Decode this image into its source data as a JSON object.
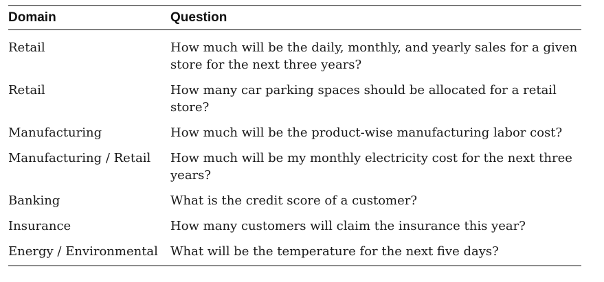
{
  "table": {
    "headers": [
      "Domain",
      "Question"
    ],
    "rows": [
      {
        "domain": "Retail",
        "question": "How much will be the daily, monthly, and yearly sales for a given store for the next three years?"
      },
      {
        "domain": "Retail",
        "question": "How many car parking spaces should be allocated for a retail store?"
      },
      {
        "domain": "Manufacturing",
        "question": "How much will be the product-wise manufacturing labor cost?"
      },
      {
        "domain": "Manufacturing / Retail",
        "question": "How much will be my monthly electricity cost for the next three years?"
      },
      {
        "domain": "Banking",
        "question": "What is the credit score of a customer?"
      },
      {
        "domain": "Insurance",
        "question": "How many customers will claim the insurance this year?"
      },
      {
        "domain": "Energy / Environmental",
        "question": "What will be the temperature for the next five days?"
      }
    ]
  }
}
